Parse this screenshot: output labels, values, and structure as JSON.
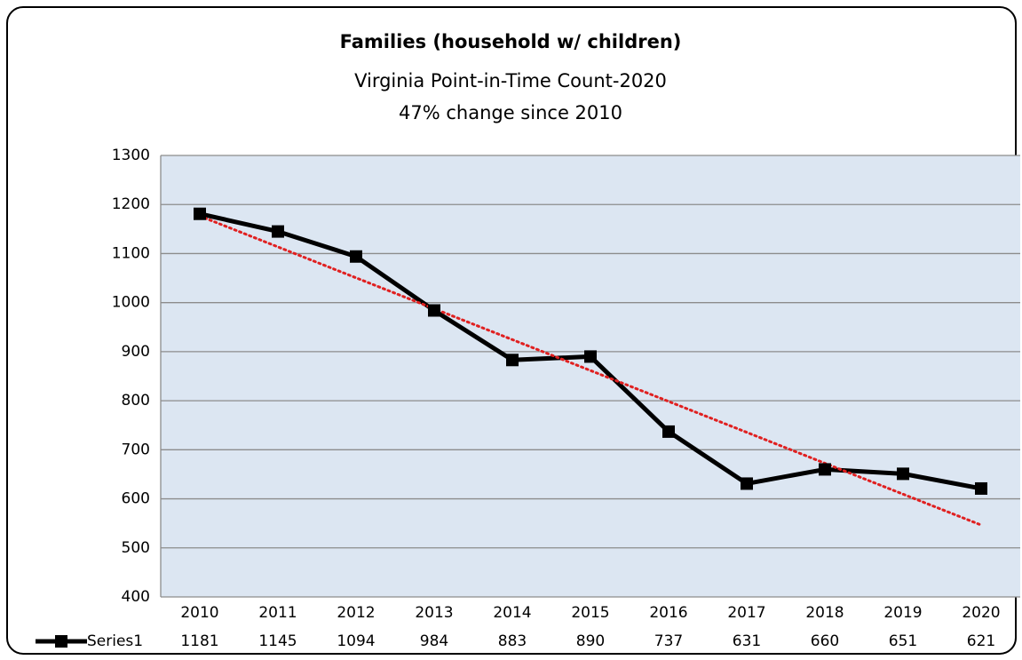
{
  "chart_data": {
    "type": "line",
    "title": "Families (household w/ children)",
    "subtitle": [
      "Virginia Point-in-Time Count-2020",
      "47% change since 2010"
    ],
    "categories": [
      "2010",
      "2011",
      "2012",
      "2013",
      "2014",
      "2015",
      "2016",
      "2017",
      "2018",
      "2019",
      "2020"
    ],
    "series": [
      {
        "name": "Series1",
        "color": "#000000",
        "values": [
          1181,
          1145,
          1094,
          984,
          883,
          890,
          737,
          631,
          660,
          651,
          621
        ]
      }
    ],
    "ylim": [
      400,
      1300
    ],
    "yticks": [
      400,
      500,
      600,
      700,
      800,
      900,
      1000,
      1100,
      1200,
      1300
    ],
    "grid": true,
    "plot_background": "#dce6f2",
    "trendline": {
      "type": "linear",
      "color": "#e02020"
    },
    "data_table": true
  }
}
